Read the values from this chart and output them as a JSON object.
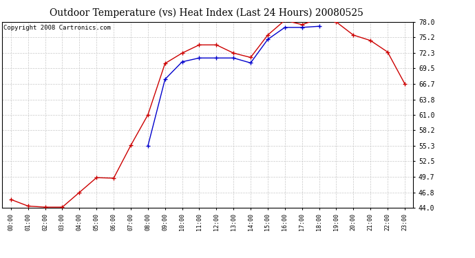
{
  "title": "Outdoor Temperature (vs) Heat Index (Last 24 Hours) 20080525",
  "copyright": "Copyright 2008 Cartronics.com",
  "x_labels": [
    "00:00",
    "01:00",
    "02:00",
    "03:00",
    "04:00",
    "05:00",
    "06:00",
    "07:00",
    "08:00",
    "09:00",
    "10:00",
    "11:00",
    "12:00",
    "13:00",
    "14:00",
    "15:00",
    "16:00",
    "17:00",
    "18:00",
    "19:00",
    "20:00",
    "21:00",
    "22:00",
    "23:00"
  ],
  "temp_red": [
    45.5,
    44.3,
    44.1,
    44.1,
    46.8,
    49.5,
    49.4,
    55.4,
    61.0,
    70.4,
    72.3,
    73.8,
    73.8,
    72.3,
    71.5,
    75.6,
    78.3,
    77.5,
    78.6,
    78.0,
    75.6,
    74.6,
    72.5,
    66.7
  ],
  "heat_blue": [
    null,
    null,
    null,
    null,
    null,
    null,
    null,
    null,
    55.3,
    67.5,
    70.7,
    71.4,
    71.4,
    71.4,
    70.5,
    74.8,
    77.0,
    77.0,
    77.2,
    null,
    null,
    null,
    null,
    null
  ],
  "yticks": [
    44.0,
    46.8,
    49.7,
    52.5,
    55.3,
    58.2,
    61.0,
    63.8,
    66.7,
    69.5,
    72.3,
    75.2,
    78.0
  ],
  "ymin": 44.0,
  "ymax": 78.0,
  "bg_color": "#ffffff",
  "plot_bg_color": "#ffffff",
  "grid_color": "#c8c8c8",
  "red_color": "#cc0000",
  "blue_color": "#0000cc",
  "title_fontsize": 10,
  "copyright_fontsize": 6.5
}
